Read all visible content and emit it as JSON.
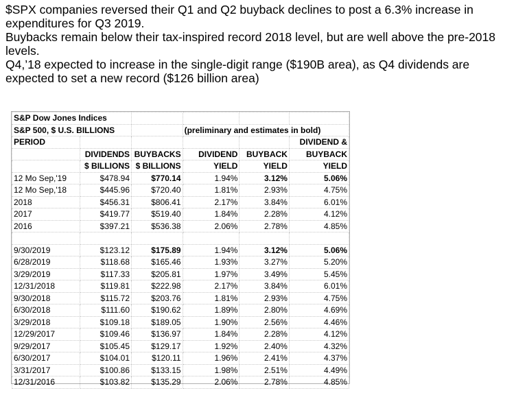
{
  "intro": {
    "line1": "$SPX companies reversed their Q1 and Q2 buyback declines to post a 6.3% increase in expenditures for Q3 2019.",
    "line2": "Buybacks remain below their tax-inspired record 2018 level, but are well above the pre-2018 levels.",
    "line3": "Q4,’18 expected to increase in the single-digit range ($190B area), as Q4 dividends are expected to set a new record ($126 billion area)"
  },
  "table": {
    "source": "S&P Dow Jones Indices",
    "subtitle": "S&P 500, $ U.S. BILLIONS",
    "note": "(preliminary and estimates in bold)",
    "period_label": "PERIOD",
    "col5_top": "DIVIDEND &",
    "headers_row1": [
      "",
      "DIVIDENDS",
      "BUYBACKS",
      "DIVIDEND",
      "BUYBACK",
      "BUYBACK"
    ],
    "headers_row2": [
      "",
      "$ BILLIONS",
      "$ BILLIONS",
      "YIELD",
      "YIELD",
      "YIELD"
    ],
    "annual_rows": [
      {
        "period": "12 Mo Sep,'19",
        "dividends": "$478.94",
        "buybacks": "$770.14",
        "div_yield": "1.94%",
        "bb_yield": "3.12%",
        "total_yield": "5.06%",
        "bold": [
          false,
          false,
          true,
          false,
          true,
          true
        ]
      },
      {
        "period": "12 Mo Sep,'18",
        "dividends": "$445.96",
        "buybacks": "$720.40",
        "div_yield": "1.81%",
        "bb_yield": "2.93%",
        "total_yield": "4.75%",
        "bold": [
          false,
          false,
          false,
          false,
          false,
          false
        ]
      },
      {
        "period": "2018",
        "dividends": "$456.31",
        "buybacks": "$806.41",
        "div_yield": "2.17%",
        "bb_yield": "3.84%",
        "total_yield": "6.01%",
        "bold": [
          false,
          false,
          false,
          false,
          false,
          false
        ]
      },
      {
        "period": "2017",
        "dividends": "$419.77",
        "buybacks": "$519.40",
        "div_yield": "1.84%",
        "bb_yield": "2.28%",
        "total_yield": "4.12%",
        "bold": [
          false,
          false,
          false,
          false,
          false,
          false
        ]
      },
      {
        "period": "2016",
        "dividends": "$397.21",
        "buybacks": "$536.38",
        "div_yield": "2.06%",
        "bb_yield": "2.78%",
        "total_yield": "4.85%",
        "bold": [
          false,
          false,
          false,
          false,
          false,
          false
        ]
      }
    ],
    "quarterly_rows": [
      {
        "period": "9/30/2019",
        "dividends": "$123.12",
        "buybacks": "$175.89",
        "div_yield": "1.94%",
        "bb_yield": "3.12%",
        "total_yield": "5.06%",
        "bold": [
          false,
          false,
          true,
          false,
          true,
          true
        ]
      },
      {
        "period": "6/28/2019",
        "dividends": "$118.68",
        "buybacks": "$165.46",
        "div_yield": "1.93%",
        "bb_yield": "3.27%",
        "total_yield": "5.20%",
        "bold": [
          false,
          false,
          false,
          false,
          false,
          false
        ]
      },
      {
        "period": "3/29/2019",
        "dividends": "$117.33",
        "buybacks": "$205.81",
        "div_yield": "1.97%",
        "bb_yield": "3.49%",
        "total_yield": "5.45%",
        "bold": [
          false,
          false,
          false,
          false,
          false,
          false
        ]
      },
      {
        "period": "12/31/2018",
        "dividends": "$119.81",
        "buybacks": "$222.98",
        "div_yield": "2.17%",
        "bb_yield": "3.84%",
        "total_yield": "6.01%",
        "bold": [
          false,
          false,
          false,
          false,
          false,
          false
        ]
      },
      {
        "period": "9/30/2018",
        "dividends": "$115.72",
        "buybacks": "$203.76",
        "div_yield": "1.81%",
        "bb_yield": "2.93%",
        "total_yield": "4.75%",
        "bold": [
          false,
          false,
          false,
          false,
          false,
          false
        ]
      },
      {
        "period": "6/30/2018",
        "dividends": "$111.60",
        "buybacks": "$190.62",
        "div_yield": "1.89%",
        "bb_yield": "2.80%",
        "total_yield": "4.69%",
        "bold": [
          false,
          false,
          false,
          false,
          false,
          false
        ]
      },
      {
        "period": "3/29/2018",
        "dividends": "$109.18",
        "buybacks": "$189.05",
        "div_yield": "1.90%",
        "bb_yield": "2.56%",
        "total_yield": "4.46%",
        "bold": [
          false,
          false,
          false,
          false,
          false,
          false
        ]
      },
      {
        "period": "12/29/2017",
        "dividends": "$109.46",
        "buybacks": "$136.97",
        "div_yield": "1.84%",
        "bb_yield": "2.28%",
        "total_yield": "4.12%",
        "bold": [
          false,
          false,
          false,
          false,
          false,
          false
        ]
      },
      {
        "period": "9/29/2017",
        "dividends": "$105.45",
        "buybacks": "$129.17",
        "div_yield": "1.92%",
        "bb_yield": "2.40%",
        "total_yield": "4.32%",
        "bold": [
          false,
          false,
          false,
          false,
          false,
          false
        ]
      },
      {
        "period": "6/30/2017",
        "dividends": "$104.01",
        "buybacks": "$120.11",
        "div_yield": "1.96%",
        "bb_yield": "2.41%",
        "total_yield": "4.37%",
        "bold": [
          false,
          false,
          false,
          false,
          false,
          false
        ]
      },
      {
        "period": "3/31/2017",
        "dividends": "$100.86",
        "buybacks": "$133.15",
        "div_yield": "1.98%",
        "bb_yield": "2.51%",
        "total_yield": "4.49%",
        "bold": [
          false,
          false,
          false,
          false,
          false,
          false
        ]
      },
      {
        "period": "12/31/2016",
        "dividends": "$103.82",
        "buybacks": "$135.29",
        "div_yield": "2.06%",
        "bb_yield": "2.78%",
        "total_yield": "4.85%",
        "bold": [
          false,
          false,
          false,
          false,
          false,
          false
        ]
      }
    ]
  }
}
